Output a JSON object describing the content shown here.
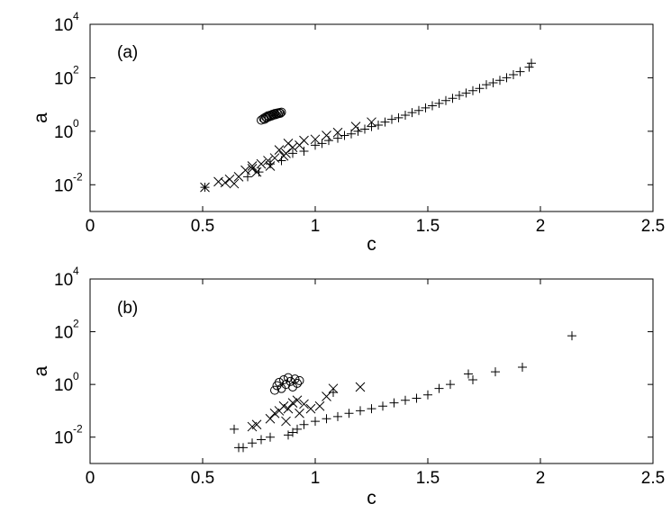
{
  "chart_data": [
    {
      "type": "scatter",
      "panel_label": "(a)",
      "xlabel": "c",
      "ylabel": "a",
      "xlim": [
        0,
        2.5
      ],
      "ylim_log10": [
        -3,
        4
      ],
      "yscale": "log",
      "x_ticks": [
        "0",
        "0.5",
        "1",
        "1.5",
        "2",
        "2.5"
      ],
      "y_ticks": [
        {
          "base": "10",
          "exp": "-2"
        },
        {
          "base": "10",
          "exp": "0"
        },
        {
          "base": "10",
          "exp": "2"
        },
        {
          "base": "10",
          "exp": "4"
        }
      ],
      "grid": false,
      "series": [
        {
          "marker": "circle",
          "points": [
            [
              0.76,
              2.6
            ],
            [
              0.77,
              3.0
            ],
            [
              0.775,
              2.8
            ],
            [
              0.78,
              3.4
            ],
            [
              0.785,
              3.2
            ],
            [
              0.79,
              3.8
            ],
            [
              0.795,
              3.5
            ],
            [
              0.8,
              4.0
            ],
            [
              0.805,
              3.7
            ],
            [
              0.81,
              4.3
            ],
            [
              0.815,
              4.0
            ],
            [
              0.82,
              4.6
            ],
            [
              0.825,
              4.2
            ],
            [
              0.83,
              4.8
            ],
            [
              0.835,
              4.5
            ],
            [
              0.84,
              5.0
            ],
            [
              0.845,
              4.7
            ],
            [
              0.85,
              5.2
            ]
          ]
        },
        {
          "marker": "cross",
          "points": [
            [
              0.51,
              0.008
            ],
            [
              0.57,
              0.013
            ],
            [
              0.6,
              0.012
            ],
            [
              0.62,
              0.016
            ],
            [
              0.64,
              0.011
            ],
            [
              0.66,
              0.02
            ],
            [
              0.69,
              0.035
            ],
            [
              0.72,
              0.05
            ],
            [
              0.74,
              0.03
            ],
            [
              0.76,
              0.06
            ],
            [
              0.79,
              0.08
            ],
            [
              0.8,
              0.05
            ],
            [
              0.82,
              0.1
            ],
            [
              0.84,
              0.2
            ],
            [
              0.86,
              0.12
            ],
            [
              0.88,
              0.35
            ],
            [
              0.9,
              0.25
            ],
            [
              0.93,
              0.3
            ],
            [
              0.95,
              0.45
            ],
            [
              1.0,
              0.5
            ],
            [
              1.05,
              0.7
            ],
            [
              1.1,
              0.9
            ],
            [
              1.18,
              1.5
            ],
            [
              1.25,
              2.2
            ],
            [
              0.72,
              0.04
            ],
            [
              0.87,
              0.15
            ]
          ]
        },
        {
          "marker": "plus",
          "points": [
            [
              0.51,
              0.008
            ],
            [
              0.7,
              0.02
            ],
            [
              0.75,
              0.03
            ],
            [
              0.8,
              0.06
            ],
            [
              0.85,
              0.08
            ],
            [
              0.9,
              0.15
            ],
            [
              0.95,
              0.18
            ],
            [
              1.0,
              0.3
            ],
            [
              1.03,
              0.35
            ],
            [
              1.06,
              0.45
            ],
            [
              1.1,
              0.55
            ],
            [
              1.13,
              0.7
            ],
            [
              1.16,
              0.8
            ],
            [
              1.19,
              1.0
            ],
            [
              1.22,
              1.2
            ],
            [
              1.25,
              1.5
            ],
            [
              1.28,
              1.7
            ],
            [
              1.31,
              2.2
            ],
            [
              1.34,
              2.8
            ],
            [
              1.37,
              3.2
            ],
            [
              1.4,
              4.0
            ],
            [
              1.43,
              5.0
            ],
            [
              1.46,
              6.0
            ],
            [
              1.49,
              7.5
            ],
            [
              1.52,
              9.0
            ],
            [
              1.55,
              11.0
            ],
            [
              1.58,
              14.0
            ],
            [
              1.61,
              17.0
            ],
            [
              1.64,
              22.0
            ],
            [
              1.67,
              27.0
            ],
            [
              1.7,
              33.0
            ],
            [
              1.73,
              40.0
            ],
            [
              1.76,
              55.0
            ],
            [
              1.79,
              65.0
            ],
            [
              1.82,
              80.0
            ],
            [
              1.85,
              100.0
            ],
            [
              1.88,
              130.0
            ],
            [
              1.91,
              170.0
            ],
            [
              1.95,
              250.0
            ],
            [
              1.96,
              350.0
            ]
          ]
        }
      ]
    },
    {
      "type": "scatter",
      "panel_label": "(b)",
      "xlabel": "c",
      "ylabel": "a",
      "xlim": [
        0,
        2.5
      ],
      "ylim_log10": [
        -3,
        4
      ],
      "yscale": "log",
      "x_ticks": [
        "0",
        "0.5",
        "1",
        "1.5",
        "2",
        "2.5"
      ],
      "y_ticks": [
        {
          "base": "10",
          "exp": "-2"
        },
        {
          "base": "10",
          "exp": "0"
        },
        {
          "base": "10",
          "exp": "2"
        },
        {
          "base": "10",
          "exp": "4"
        }
      ],
      "grid": false,
      "series": [
        {
          "marker": "circle",
          "points": [
            [
              0.82,
              0.6
            ],
            [
              0.83,
              0.9
            ],
            [
              0.84,
              1.2
            ],
            [
              0.85,
              0.7
            ],
            [
              0.86,
              1.5
            ],
            [
              0.87,
              1.0
            ],
            [
              0.88,
              1.8
            ],
            [
              0.89,
              1.3
            ],
            [
              0.9,
              0.8
            ],
            [
              0.91,
              1.6
            ],
            [
              0.92,
              1.1
            ],
            [
              0.93,
              1.4
            ]
          ]
        },
        {
          "marker": "cross",
          "points": [
            [
              0.72,
              0.025
            ],
            [
              0.74,
              0.03
            ],
            [
              0.8,
              0.05
            ],
            [
              0.82,
              0.08
            ],
            [
              0.84,
              0.1
            ],
            [
              0.86,
              0.15
            ],
            [
              0.88,
              0.12
            ],
            [
              0.9,
              0.2
            ],
            [
              0.92,
              0.25
            ],
            [
              0.95,
              0.18
            ],
            [
              0.98,
              0.12
            ],
            [
              1.02,
              0.15
            ],
            [
              1.05,
              0.35
            ],
            [
              1.08,
              0.7
            ],
            [
              1.2,
              0.8
            ],
            [
              0.87,
              0.04
            ],
            [
              0.93,
              0.08
            ]
          ]
        },
        {
          "marker": "plus",
          "points": [
            [
              0.64,
              0.02
            ],
            [
              0.66,
              0.004
            ],
            [
              0.68,
              0.004
            ],
            [
              0.72,
              0.006
            ],
            [
              0.76,
              0.008
            ],
            [
              0.8,
              0.01
            ],
            [
              0.88,
              0.012
            ],
            [
              0.9,
              0.015
            ],
            [
              0.92,
              0.02
            ],
            [
              0.95,
              0.03
            ],
            [
              1.0,
              0.04
            ],
            [
              1.05,
              0.05
            ],
            [
              1.1,
              0.06
            ],
            [
              1.15,
              0.08
            ],
            [
              1.2,
              0.1
            ],
            [
              1.25,
              0.12
            ],
            [
              1.3,
              0.15
            ],
            [
              1.35,
              0.2
            ],
            [
              1.4,
              0.25
            ],
            [
              1.45,
              0.3
            ],
            [
              1.5,
              0.4
            ],
            [
              1.55,
              0.7
            ],
            [
              1.6,
              1.0
            ],
            [
              1.68,
              2.5
            ],
            [
              1.7,
              1.5
            ],
            [
              1.8,
              3.0
            ],
            [
              1.92,
              4.5
            ],
            [
              2.14,
              70.0
            ],
            [
              1.08,
              0.5
            ]
          ]
        }
      ]
    }
  ]
}
